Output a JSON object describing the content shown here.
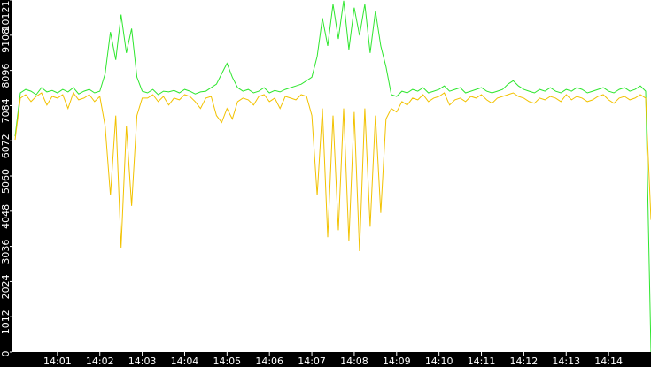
{
  "chart_data": {
    "type": "line",
    "categories": [
      null,
      null,
      null,
      null,
      null,
      null,
      null,
      null,
      "14:01",
      null,
      null,
      null,
      null,
      null,
      null,
      null,
      "14:02",
      null,
      null,
      null,
      null,
      null,
      null,
      null,
      "14:03",
      null,
      null,
      null,
      null,
      null,
      null,
      null,
      "14:04",
      null,
      null,
      null,
      null,
      null,
      null,
      null,
      "14:05",
      null,
      null,
      null,
      null,
      null,
      null,
      null,
      "14:06",
      null,
      null,
      null,
      null,
      null,
      null,
      null,
      "14:07",
      null,
      null,
      null,
      null,
      null,
      null,
      null,
      "14:08",
      null,
      null,
      null,
      null,
      null,
      null,
      null,
      "14:09",
      null,
      null,
      null,
      null,
      null,
      null,
      null,
      "14:10",
      null,
      null,
      null,
      null,
      null,
      null,
      null,
      "14:11",
      null,
      null,
      null,
      null,
      null,
      null,
      null,
      "14:12",
      null,
      null,
      null,
      null,
      null,
      null,
      null,
      "14:13",
      null,
      null,
      null,
      null,
      null,
      null,
      null,
      "14:14",
      null,
      null,
      null,
      null,
      null,
      null,
      null,
      null
    ],
    "series": [
      {
        "color": "#2ee62e",
        "values": [
          6200,
          7450,
          7550,
          7500,
          7400,
          7600,
          7480,
          7520,
          7450,
          7550,
          7480,
          7600,
          7420,
          7500,
          7550,
          7450,
          7500,
          8000,
          9200,
          8400,
          9700,
          8600,
          9300,
          7900,
          7500,
          7450,
          7550,
          7400,
          7500,
          7480,
          7520,
          7450,
          7550,
          7500,
          7420,
          7480,
          7500,
          7600,
          7700,
          8000,
          8300,
          7900,
          7600,
          7500,
          7550,
          7450,
          7500,
          7600,
          7450,
          7520,
          7480,
          7550,
          7600,
          7650,
          7700,
          7800,
          7900,
          8500,
          9600,
          8800,
          10000,
          9000,
          10100,
          8700,
          9900,
          9100,
          10000,
          8600,
          9800,
          8800,
          8200,
          7400,
          7350,
          7500,
          7450,
          7550,
          7500,
          7600,
          7450,
          7500,
          7550,
          7650,
          7500,
          7550,
          7600,
          7450,
          7500,
          7550,
          7600,
          7500,
          7450,
          7500,
          7550,
          7700,
          7800,
          7650,
          7550,
          7500,
          7450,
          7550,
          7500,
          7600,
          7500,
          7450,
          7550,
          7500,
          7600,
          7550,
          7450,
          7500,
          7550,
          7600,
          7500,
          7450,
          7550,
          7600,
          7500,
          7550,
          7650,
          7500,
          0
        ]
      },
      {
        "color": "#f2c200",
        "values": [
          6100,
          7300,
          7400,
          7200,
          7350,
          7450,
          7100,
          7350,
          7300,
          7400,
          7000,
          7450,
          7250,
          7300,
          7400,
          7200,
          7350,
          6500,
          4500,
          6800,
          3000,
          6500,
          4200,
          6800,
          7300,
          7300,
          7400,
          7200,
          7350,
          7100,
          7300,
          7250,
          7400,
          7350,
          7200,
          7000,
          7300,
          7350,
          6800,
          6600,
          7000,
          6700,
          7200,
          7300,
          7250,
          7100,
          7350,
          7400,
          7200,
          7300,
          7000,
          7350,
          7300,
          7250,
          7400,
          7350,
          6800,
          4500,
          7000,
          3300,
          6800,
          3500,
          7000,
          3200,
          6900,
          2900,
          7000,
          3600,
          6800,
          4000,
          6700,
          7000,
          6900,
          7200,
          7100,
          7300,
          7250,
          7400,
          7200,
          7300,
          7350,
          7450,
          7100,
          7250,
          7300,
          7200,
          7350,
          7300,
          7400,
          7250,
          7150,
          7300,
          7350,
          7400,
          7450,
          7350,
          7300,
          7200,
          7150,
          7300,
          7250,
          7350,
          7300,
          7200,
          7400,
          7250,
          7350,
          7300,
          7200,
          7250,
          7350,
          7400,
          7250,
          7150,
          7300,
          7350,
          7250,
          7300,
          7400,
          7300,
          3800
        ]
      }
    ],
    "ylim": [
      0,
      10121
    ],
    "yticks": [
      0,
      1012,
      2024,
      3036,
      4048,
      5060,
      6072,
      7084,
      8096,
      9108,
      10121
    ]
  }
}
